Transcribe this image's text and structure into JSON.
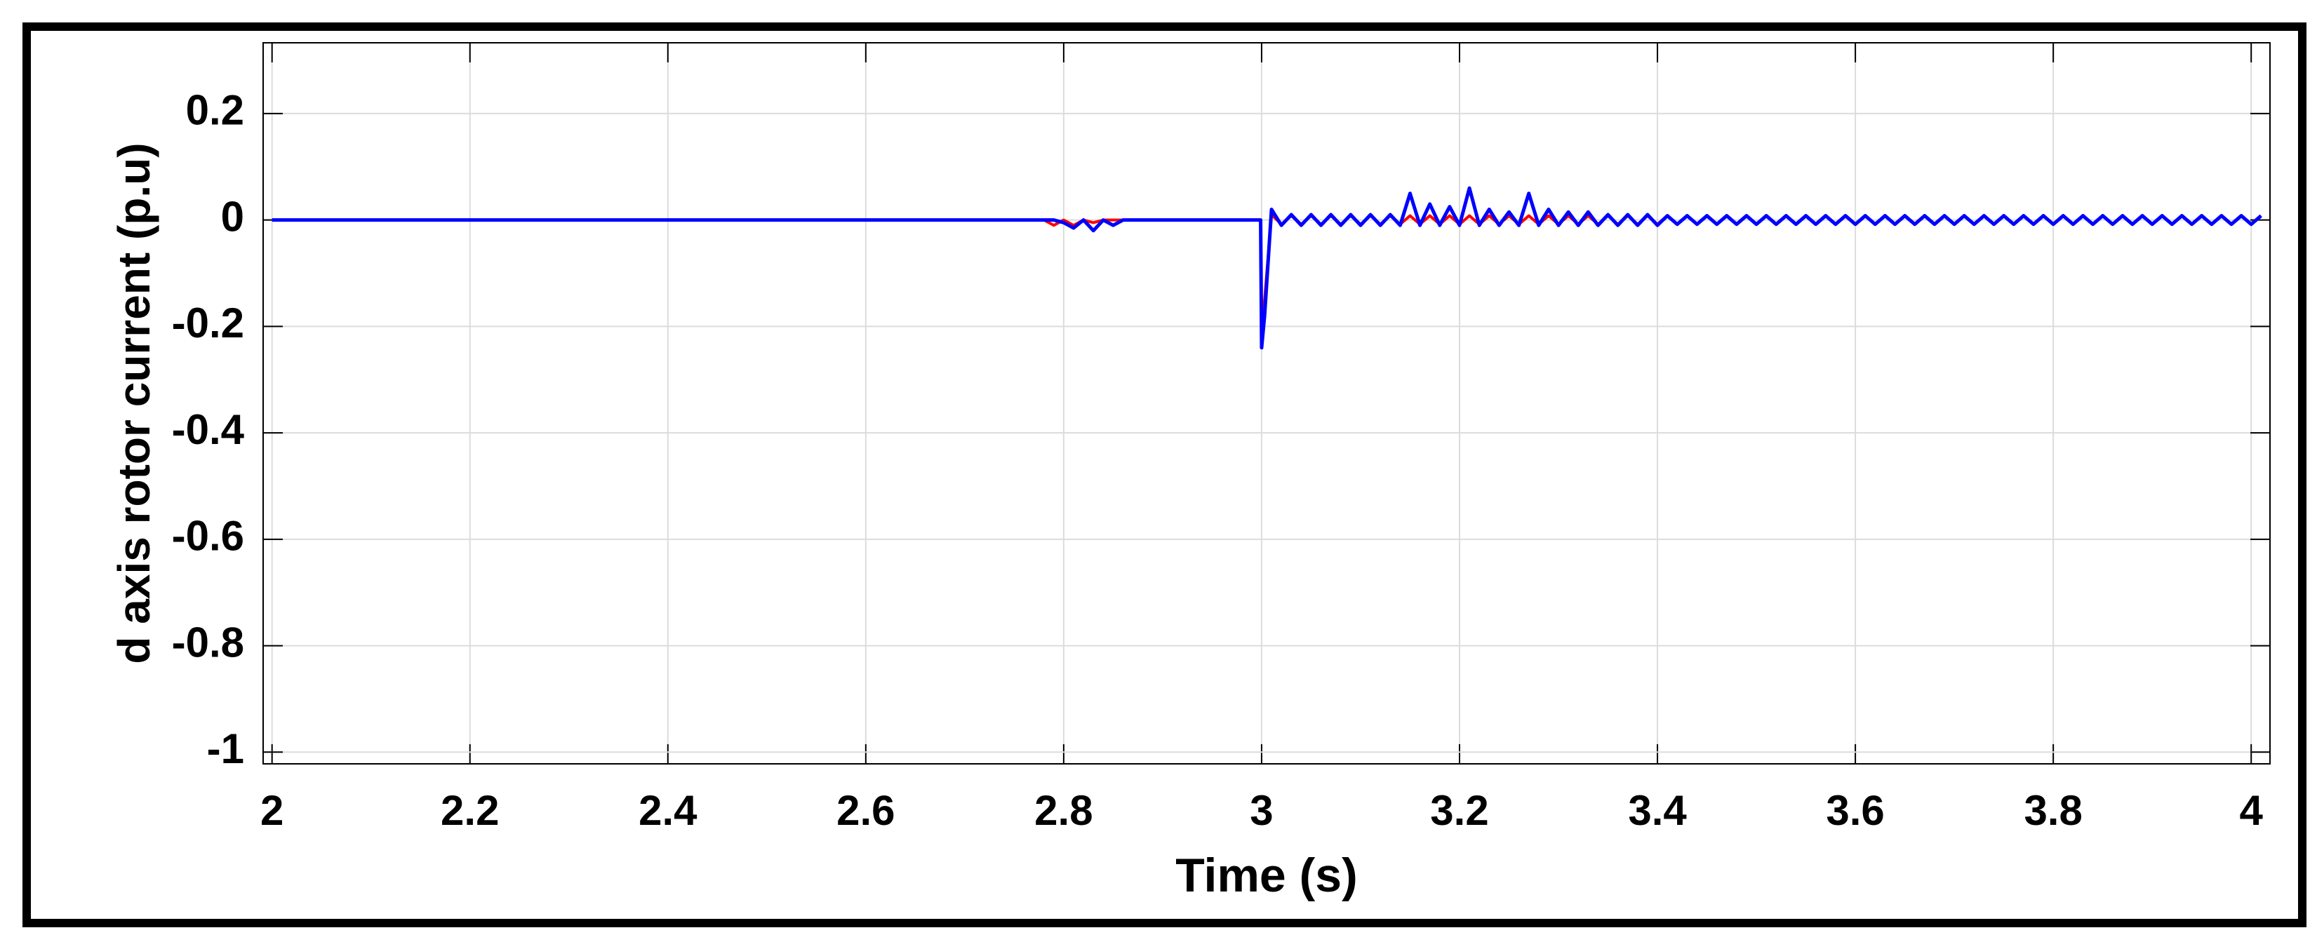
{
  "chart_data": {
    "type": "line",
    "xlabel": "Time (s)",
    "ylabel": "d axis rotor current (p.u)",
    "xlim": [
      1.991,
      4.019
    ],
    "ylim": [
      -1.022,
      0.333
    ],
    "xticks": [
      2,
      2.2,
      2.4,
      2.6,
      2.8,
      3,
      3.2,
      3.4,
      3.6,
      3.8,
      4
    ],
    "yticks": [
      -1,
      -0.8,
      -0.6,
      -0.4,
      -0.2,
      0,
      0.2
    ],
    "grid": true,
    "x": [
      2,
      2.78,
      2.79,
      2.8,
      2.81,
      2.82,
      2.83,
      2.84,
      2.85,
      2.86,
      2.999,
      3,
      3.003,
      3.01,
      3.02,
      3.03,
      3.04,
      3.05,
      3.06,
      3.07,
      3.08,
      3.09,
      3.1,
      3.11,
      3.12,
      3.13,
      3.14,
      3.15,
      3.16,
      3.17,
      3.18,
      3.19,
      3.2,
      3.21,
      3.22,
      3.23,
      3.24,
      3.25,
      3.26,
      3.27,
      3.28,
      3.29,
      3.3,
      3.31,
      3.32,
      3.33,
      3.34,
      3.35,
      3.36,
      3.37,
      3.38,
      3.39,
      3.4,
      3.41,
      3.42,
      3.43,
      3.44,
      3.45,
      3.46,
      3.47,
      3.48,
      3.49,
      3.5,
      3.51,
      3.52,
      3.53,
      3.54,
      3.55,
      3.56,
      3.57,
      3.58,
      3.59,
      3.6,
      3.61,
      3.62,
      3.63,
      3.64,
      3.65,
      3.66,
      3.67,
      3.68,
      3.69,
      3.7,
      3.71,
      3.72,
      3.73,
      3.74,
      3.75,
      3.76,
      3.77,
      3.78,
      3.79,
      3.8,
      3.81,
      3.82,
      3.83,
      3.84,
      3.85,
      3.86,
      3.87,
      3.88,
      3.89,
      3.9,
      3.91,
      3.92,
      3.93,
      3.94,
      3.95,
      3.96,
      3.97,
      3.98,
      3.99,
      4,
      4.01
    ],
    "series": [
      {
        "color": "#ff0000",
        "values": [
          0,
          0,
          -0.01,
          0,
          -0.01,
          0,
          -0.005,
          0,
          0,
          0,
          0,
          -0.2,
          -0.15,
          0.01,
          -0.008,
          0.008,
          -0.008,
          0.008,
          -0.008,
          0.008,
          -0.008,
          0.008,
          -0.008,
          0.008,
          -0.008,
          0.008,
          -0.008,
          0.008,
          -0.008,
          0.008,
          -0.008,
          0.008,
          -0.008,
          0.008,
          -0.008,
          0.008,
          -0.008,
          0.008,
          -0.008,
          0.008,
          -0.008,
          0.008,
          -0.008,
          0.008,
          -0.008,
          0.008,
          -0.008,
          0.008,
          -0.008,
          0.008,
          -0.008,
          0.008,
          -0.008,
          0.008,
          -0.008,
          0.008,
          -0.008,
          0.008,
          -0.008,
          0.008,
          -0.008,
          0.008,
          -0.008,
          0.008,
          -0.008,
          0.008,
          -0.008,
          0.008,
          -0.008,
          0.008,
          -0.008,
          0.008,
          -0.008,
          0.008,
          -0.008,
          0.008,
          -0.008,
          0.008,
          -0.008,
          0.008,
          -0.008,
          0.008,
          -0.008,
          0.008,
          -0.008,
          0.008,
          -0.008,
          0.008,
          -0.008,
          0.008,
          -0.008,
          0.008,
          -0.008,
          0.008,
          -0.008,
          0.008,
          -0.008,
          0.008,
          -0.008,
          0.008,
          -0.008,
          0.008,
          -0.008,
          0.008,
          -0.008,
          0.008,
          -0.008,
          0.008,
          -0.008,
          0.008,
          -0.008,
          0.008,
          -0.008,
          0.008
        ]
      },
      {
        "color": "#0000ff",
        "values": [
          0,
          0,
          0,
          -0.005,
          -0.015,
          0,
          -0.02,
          0,
          -0.01,
          0,
          0,
          -0.24,
          -0.18,
          0.02,
          -0.01,
          0.01,
          -0.01,
          0.01,
          -0.01,
          0.01,
          -0.01,
          0.01,
          -0.01,
          0.01,
          -0.01,
          0.01,
          -0.01,
          0.05,
          -0.01,
          0.03,
          -0.01,
          0.025,
          -0.01,
          0.06,
          -0.01,
          0.02,
          -0.01,
          0.015,
          -0.01,
          0.05,
          -0.01,
          0.02,
          -0.01,
          0.015,
          -0.01,
          0.015,
          -0.01,
          0.01,
          -0.01,
          0.01,
          -0.01,
          0.01,
          -0.01,
          0.008,
          -0.008,
          0.008,
          -0.008,
          0.008,
          -0.008,
          0.008,
          -0.008,
          0.008,
          -0.008,
          0.008,
          -0.008,
          0.008,
          -0.008,
          0.008,
          -0.008,
          0.008,
          -0.008,
          0.008,
          -0.008,
          0.008,
          -0.008,
          0.008,
          -0.008,
          0.008,
          -0.008,
          0.008,
          -0.008,
          0.008,
          -0.008,
          0.008,
          -0.008,
          0.008,
          -0.008,
          0.008,
          -0.008,
          0.008,
          -0.008,
          0.008,
          -0.008,
          0.008,
          -0.008,
          0.008,
          -0.008,
          0.008,
          -0.008,
          0.008,
          -0.008,
          0.008,
          -0.008,
          0.008,
          -0.008,
          0.008,
          -0.008,
          0.008,
          -0.008,
          0.008,
          -0.008,
          0.008,
          -0.008,
          0.008
        ]
      }
    ]
  }
}
